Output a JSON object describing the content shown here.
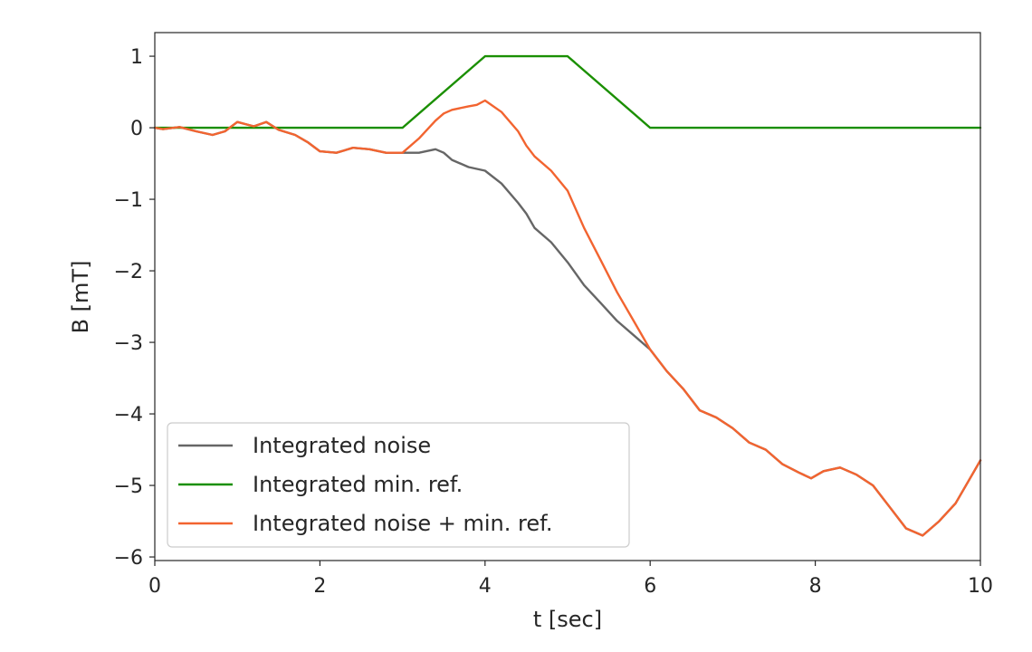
{
  "chart_data": {
    "type": "line",
    "title": "",
    "xlabel": "t [sec]",
    "ylabel": "B [mT]",
    "xlim": [
      0,
      10
    ],
    "ylim": [
      -6.05,
      1.33
    ],
    "xticks": [
      0,
      2,
      4,
      6,
      8,
      10
    ],
    "yticks": [
      1,
      0,
      -1,
      -2,
      -3,
      -4,
      -5,
      -6
    ],
    "x_tick_labels": [
      "0",
      "2",
      "4",
      "6",
      "8",
      "10"
    ],
    "y_tick_labels": [
      "1",
      "0",
      "−1",
      "−2",
      "−3",
      "−4",
      "−5",
      "−6"
    ],
    "grid": false,
    "legend_position": "lower-left",
    "series": [
      {
        "name": "Integrated noise",
        "color": "#666666",
        "x": [
          0,
          0.1,
          0.3,
          0.5,
          0.7,
          0.85,
          1.0,
          1.1,
          1.2,
          1.35,
          1.5,
          1.7,
          1.85,
          2.0,
          2.2,
          2.4,
          2.6,
          2.8,
          3.0,
          3.2,
          3.4,
          3.5,
          3.6,
          3.8,
          4.0,
          4.2,
          4.4,
          4.5,
          4.6,
          4.8,
          5.0,
          5.2,
          5.4,
          5.6,
          5.8,
          6.0,
          6.2,
          6.4,
          6.6,
          6.8,
          7.0,
          7.2,
          7.4,
          7.6,
          7.8,
          7.95,
          8.1,
          8.3,
          8.5,
          8.7,
          8.9,
          9.1,
          9.3,
          9.5,
          9.7,
          9.9,
          10.0
        ],
        "y": [
          0,
          -0.02,
          0.01,
          -0.05,
          -0.1,
          -0.05,
          0.08,
          0.05,
          0.02,
          0.08,
          -0.03,
          -0.1,
          -0.2,
          -0.33,
          -0.35,
          -0.28,
          -0.3,
          -0.35,
          -0.35,
          -0.35,
          -0.3,
          -0.35,
          -0.45,
          -0.55,
          -0.6,
          -0.78,
          -1.05,
          -1.2,
          -1.4,
          -1.6,
          -1.88,
          -2.2,
          -2.45,
          -2.7,
          -2.9,
          -3.1,
          -3.4,
          -3.65,
          -3.95,
          -4.05,
          -4.2,
          -4.4,
          -4.5,
          -4.7,
          -4.82,
          -4.9,
          -4.8,
          -4.75,
          -4.85,
          -5.0,
          -5.3,
          -5.6,
          -5.7,
          -5.5,
          -5.25,
          -4.85,
          -4.65
        ]
      },
      {
        "name": "Integrated min. ref.",
        "color": "#1a8f00",
        "x": [
          0,
          3,
          4,
          5,
          6,
          10
        ],
        "y": [
          0,
          0,
          1,
          1,
          0,
          0
        ]
      },
      {
        "name": "Integrated noise + min. ref.",
        "color": "#f26430",
        "x": [
          0,
          0.1,
          0.3,
          0.5,
          0.7,
          0.85,
          1.0,
          1.1,
          1.2,
          1.35,
          1.5,
          1.7,
          1.85,
          2.0,
          2.2,
          2.4,
          2.6,
          2.8,
          3.0,
          3.2,
          3.4,
          3.5,
          3.6,
          3.8,
          3.9,
          4.0,
          4.2,
          4.4,
          4.5,
          4.6,
          4.8,
          5.0,
          5.2,
          5.4,
          5.6,
          5.8,
          6.0,
          6.2,
          6.4,
          6.6,
          6.8,
          7.0,
          7.2,
          7.4,
          7.6,
          7.8,
          7.95,
          8.1,
          8.3,
          8.5,
          8.7,
          8.9,
          9.1,
          9.3,
          9.5,
          9.7,
          9.9,
          10.0
        ],
        "y": [
          0,
          -0.02,
          0.01,
          -0.05,
          -0.1,
          -0.05,
          0.08,
          0.05,
          0.02,
          0.08,
          -0.03,
          -0.1,
          -0.2,
          -0.33,
          -0.35,
          -0.28,
          -0.3,
          -0.35,
          -0.35,
          -0.15,
          0.1,
          0.2,
          0.25,
          0.3,
          0.32,
          0.38,
          0.22,
          -0.05,
          -0.25,
          -0.4,
          -0.6,
          -0.88,
          -1.4,
          -1.85,
          -2.3,
          -2.7,
          -3.1,
          -3.4,
          -3.65,
          -3.95,
          -4.05,
          -4.2,
          -4.4,
          -4.5,
          -4.7,
          -4.82,
          -4.9,
          -4.8,
          -4.75,
          -4.85,
          -5.0,
          -5.3,
          -5.6,
          -5.7,
          -5.5,
          -5.25,
          -4.85,
          -4.65
        ]
      }
    ]
  }
}
